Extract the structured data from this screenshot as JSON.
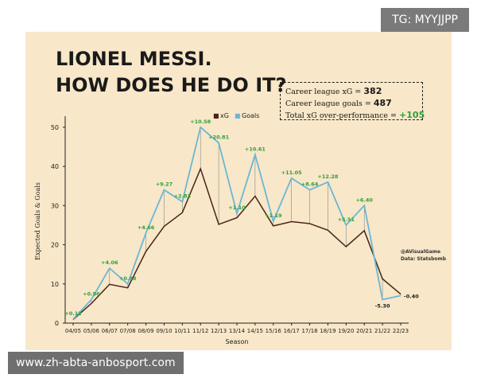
{
  "badge": {
    "text": "TG: MYYJJPP"
  },
  "watermark": {
    "text": "www.zh-abta-anbosport.com"
  },
  "title": {
    "line1": "LIONEL MESSI.",
    "line2": "HOW DOES HE DO IT?"
  },
  "stats": {
    "xg_label": "Career league xG = ",
    "xg_value": "382",
    "goals_label": "Career league goals = ",
    "goals_value": "487",
    "over_label": "Total xG over-performance = ",
    "over_value": "+105"
  },
  "credit": {
    "line1": "@AVisualGame",
    "line2": "Data: Statsbomb"
  },
  "colors": {
    "xg": "#4a2418",
    "goals": "#6ab7d6",
    "diff": "#2e9e3a",
    "neg": "#1a1a1a"
  },
  "chart_data": {
    "type": "line",
    "title": "LIONEL MESSI. HOW DOES HE DO IT?",
    "xlabel": "Season",
    "ylabel": "Expected Goals & Goals",
    "ylim": [
      0,
      52
    ],
    "yticks": [
      0,
      10,
      20,
      30,
      40,
      50
    ],
    "legend_position": "top-center",
    "categories": [
      "04/05",
      "05/06",
      "06/07",
      "07/08",
      "08/09",
      "09/10",
      "10/11",
      "11/12",
      "12/13",
      "13/14",
      "14/15",
      "15/16",
      "16/17",
      "17/18",
      "18/19",
      "19/20",
      "20/21",
      "21/22",
      "22/23"
    ],
    "series": [
      {
        "name": "xG",
        "values": [
          0.9,
          5.0,
          9.9,
          9.0,
          18.3,
          24.7,
          28.2,
          39.4,
          25.2,
          26.9,
          32.4,
          24.8,
          25.9,
          25.4,
          23.7,
          19.5,
          23.6,
          11.3,
          7.4
        ]
      },
      {
        "name": "Goals",
        "values": [
          1,
          6,
          14,
          10,
          23,
          34,
          31,
          50,
          46,
          28,
          43,
          26,
          37,
          34,
          36,
          25,
          30,
          6,
          7
        ]
      }
    ],
    "annotations": [
      "+0.12",
      "+0.96",
      "+4.06",
      "+0.98",
      "+4.66",
      "+9.27",
      "+2.83",
      "+10.58",
      "+20.81",
      "+1.10",
      "+10.61",
      "+1.19",
      "+11.05",
      "+8.64",
      "+12.28",
      "+5.51",
      "+6.40",
      "-5.30",
      "-0.40"
    ]
  }
}
